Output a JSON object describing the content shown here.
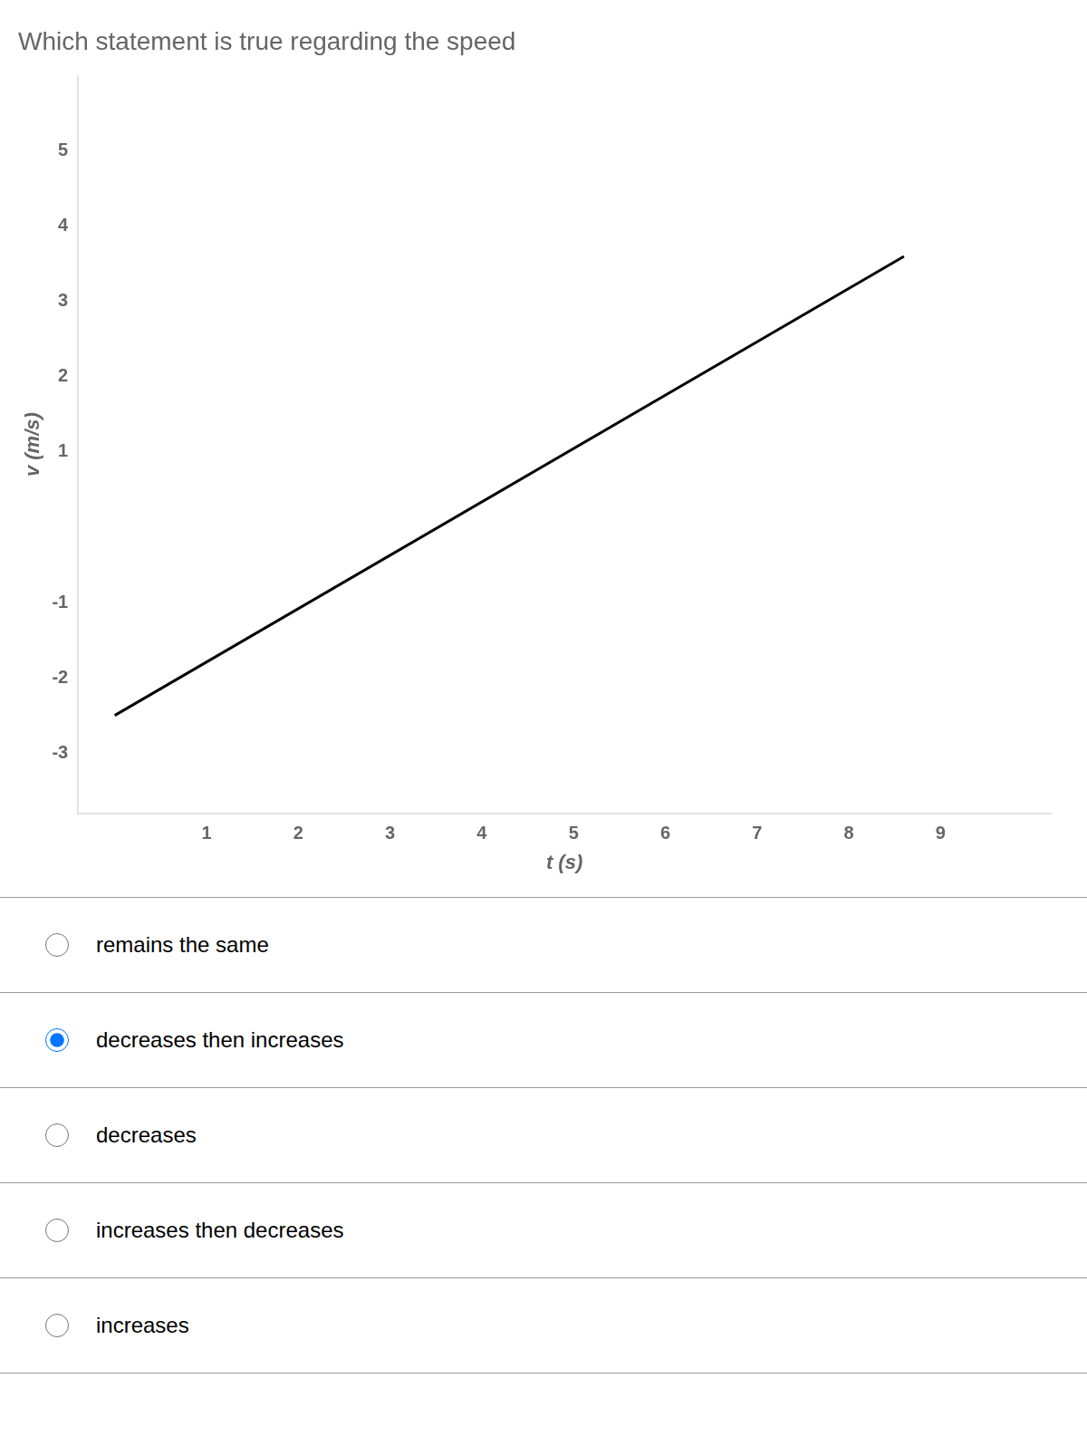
{
  "chart_data": {
    "type": "line",
    "title": "Which statement is true regarding the speed",
    "xlabel": "t (s)",
    "ylabel": "v (m/s)",
    "x": [
      0,
      8.6
    ],
    "values": [
      -2.5,
      3.6
    ],
    "color": "#000000",
    "xlim": [
      -0.4,
      10.2
    ],
    "ylim": [
      -3.8,
      6.0
    ],
    "xticks": [
      1,
      2,
      3,
      4,
      5,
      6,
      7,
      8,
      9
    ],
    "yticks": [
      -3,
      -2,
      -1,
      1,
      2,
      3,
      4,
      5
    ],
    "grid": false,
    "annotations": [
      {
        "text": "remains the same",
        "selected": false
      },
      {
        "text": "decreases then increases",
        "selected": true
      },
      {
        "text": "decreases",
        "selected": false
      },
      {
        "text": "increases then decreases",
        "selected": false
      },
      {
        "text": "increases",
        "selected": false
      }
    ]
  }
}
